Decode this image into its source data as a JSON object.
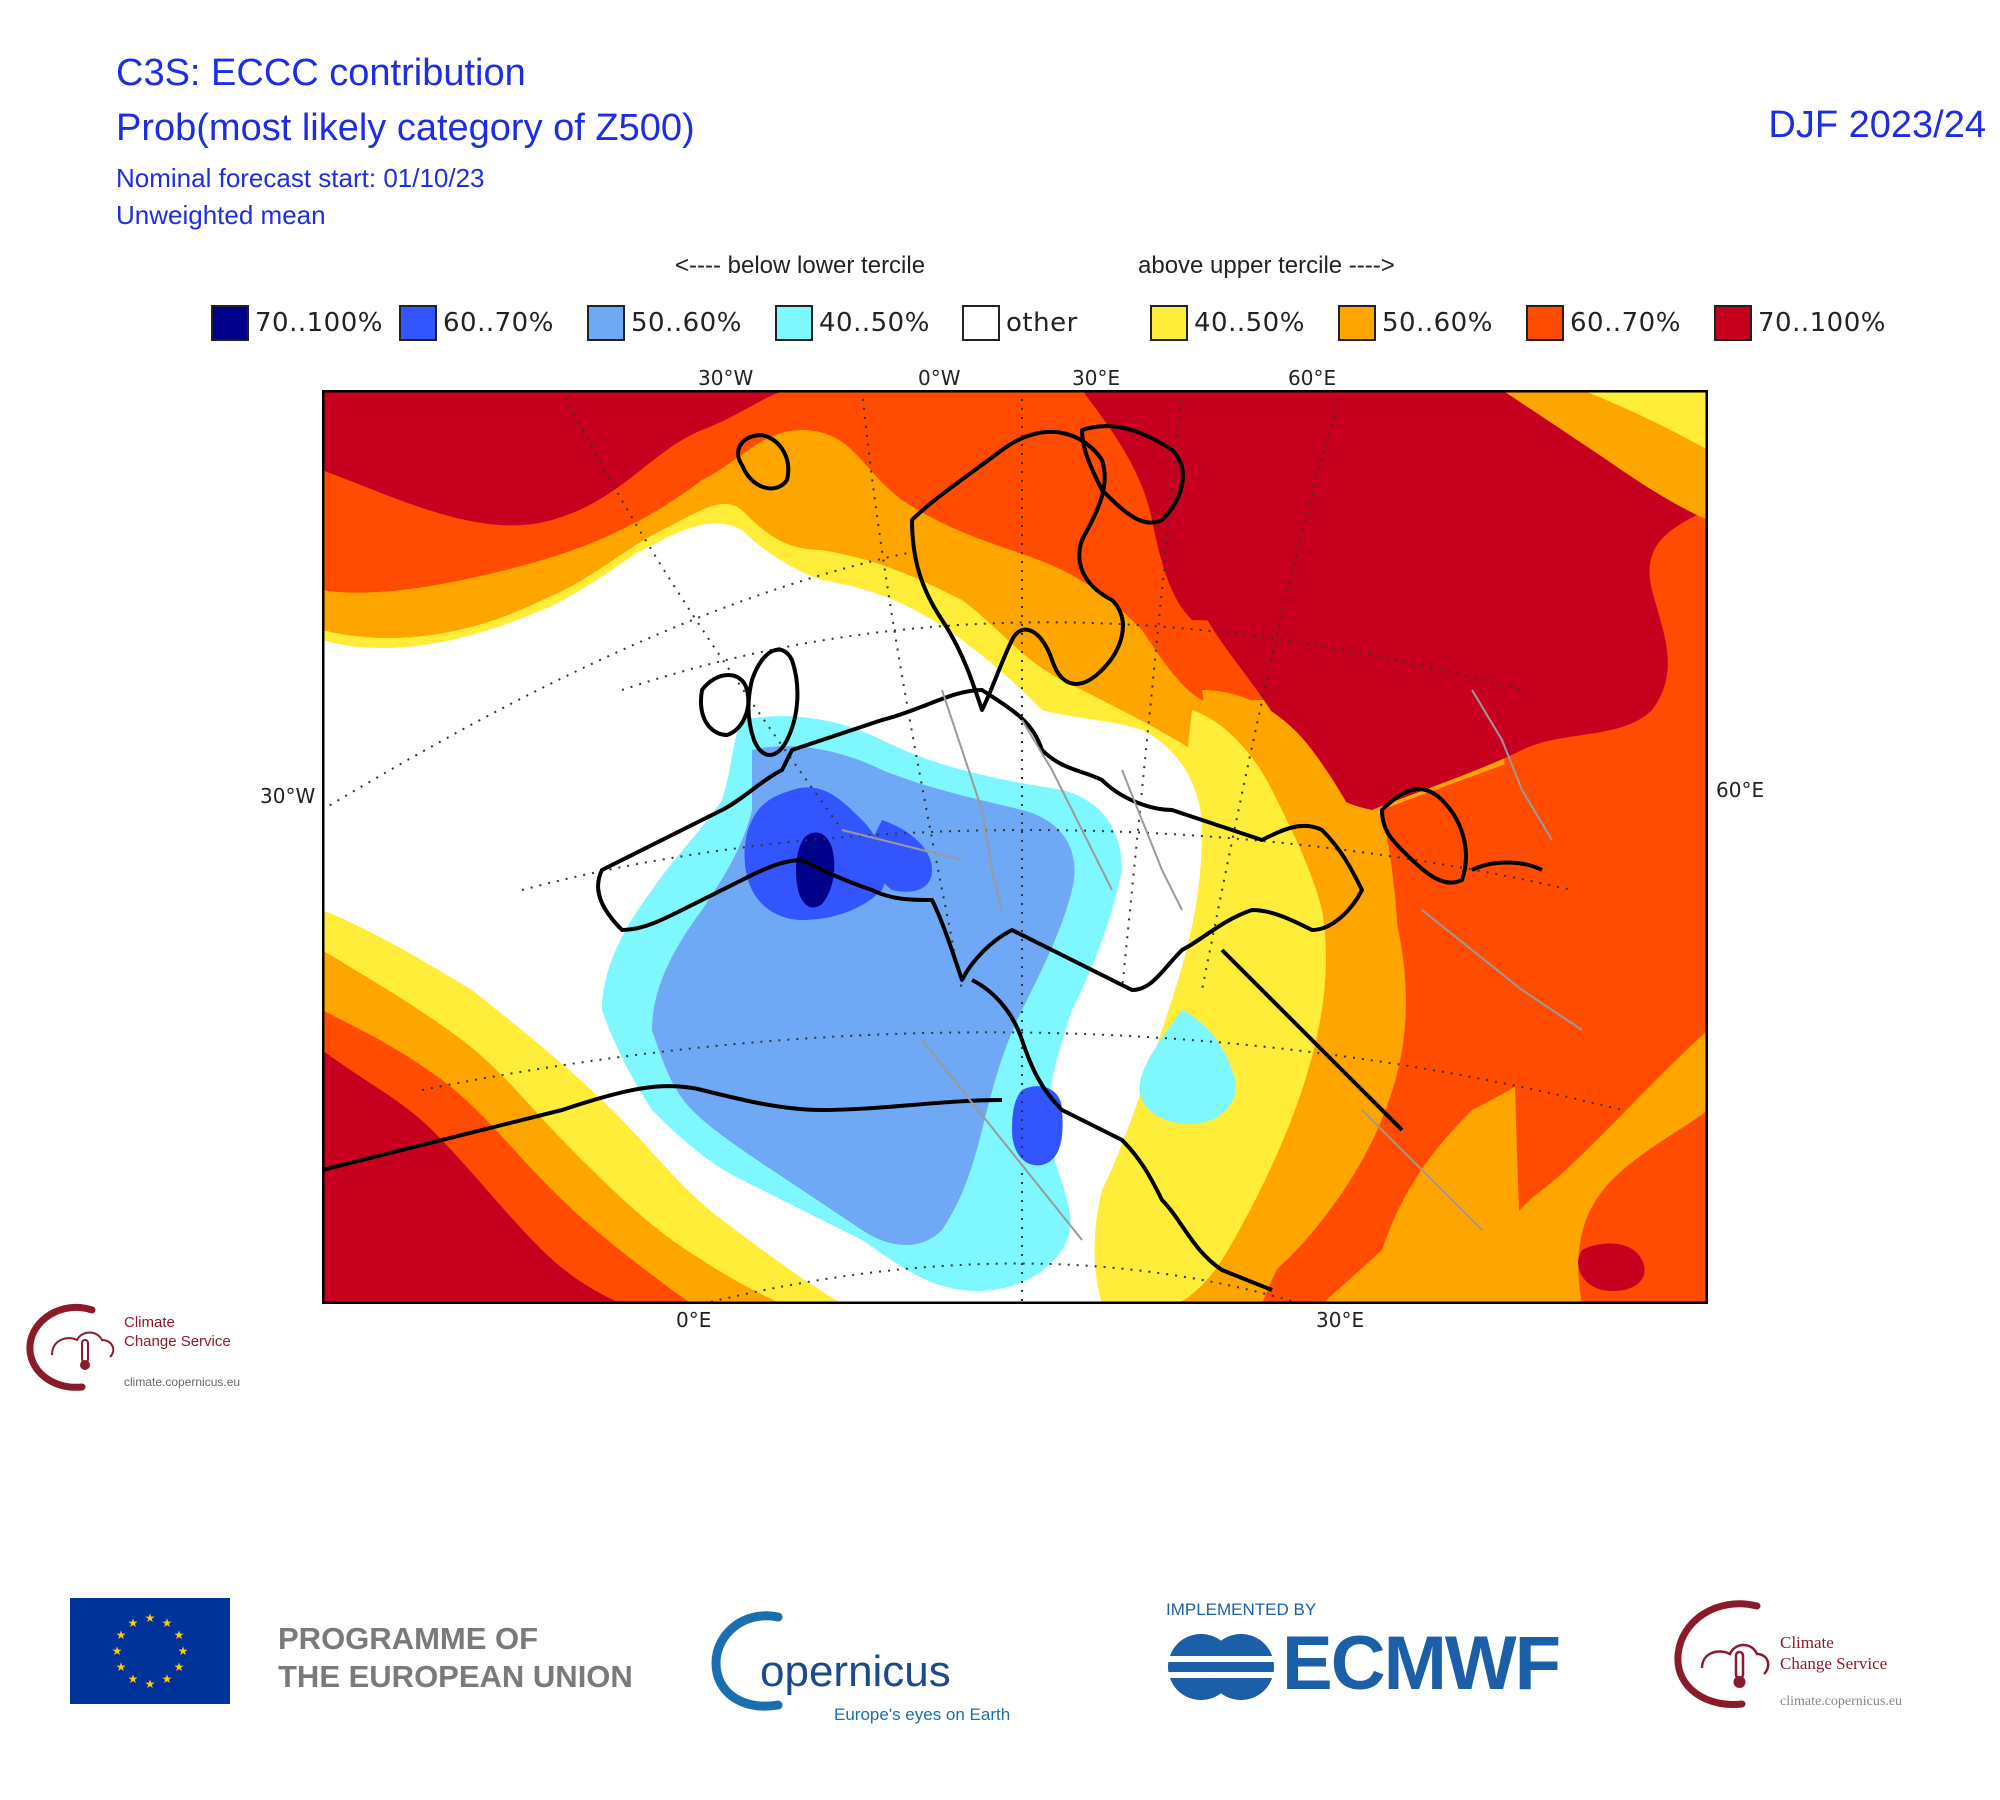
{
  "header": {
    "title": "C3S: ECCC contribution",
    "subtitle": "Prob(most likely category of Z500)",
    "forecast_start": "Nominal forecast start: 01/10/23",
    "weighting": "Unweighted mean",
    "season": "DJF 2023/24"
  },
  "legend": {
    "below_heading": "<---- below lower tercile",
    "above_heading": "above upper tercile ---->",
    "items": [
      {
        "label": "70..100%",
        "color": "#00008b"
      },
      {
        "label": "60..70%",
        "color": "#3355ff"
      },
      {
        "label": "50..60%",
        "color": "#6fa8f5"
      },
      {
        "label": "40..50%",
        "color": "#7ff7ff"
      },
      {
        "label": "other",
        "color": "#ffffff"
      },
      {
        "label": "40..50%",
        "color": "#ffed3a"
      },
      {
        "label": "50..60%",
        "color": "#ffa500"
      },
      {
        "label": "60..70%",
        "color": "#ff4c00"
      },
      {
        "label": "70..100%",
        "color": "#c8001f"
      }
    ]
  },
  "map": {
    "top_ticks": [
      "30°W",
      "0°W",
      "30°E",
      "60°E"
    ],
    "left_tick": "30°W",
    "right_tick": "60°E",
    "bottom_ticks": [
      "0°E",
      "30°E"
    ]
  },
  "logos": {
    "c3s_small_line1": "Climate",
    "c3s_small_line2": "Change Service",
    "c3s_small_url": "climate.copernicus.eu",
    "programme_line1": "PROGRAMME OF",
    "programme_line2": "THE EUROPEAN UNION",
    "copernicus_name": "opernicus",
    "copernicus_tagline": "Europe's eyes on Earth",
    "implemented_by": "IMPLEMENTED BY",
    "ecmwf": "ECMWF",
    "c3s_line1": "Climate",
    "c3s_line2": "Change Service",
    "c3s_url": "climate.copernicus.eu"
  }
}
